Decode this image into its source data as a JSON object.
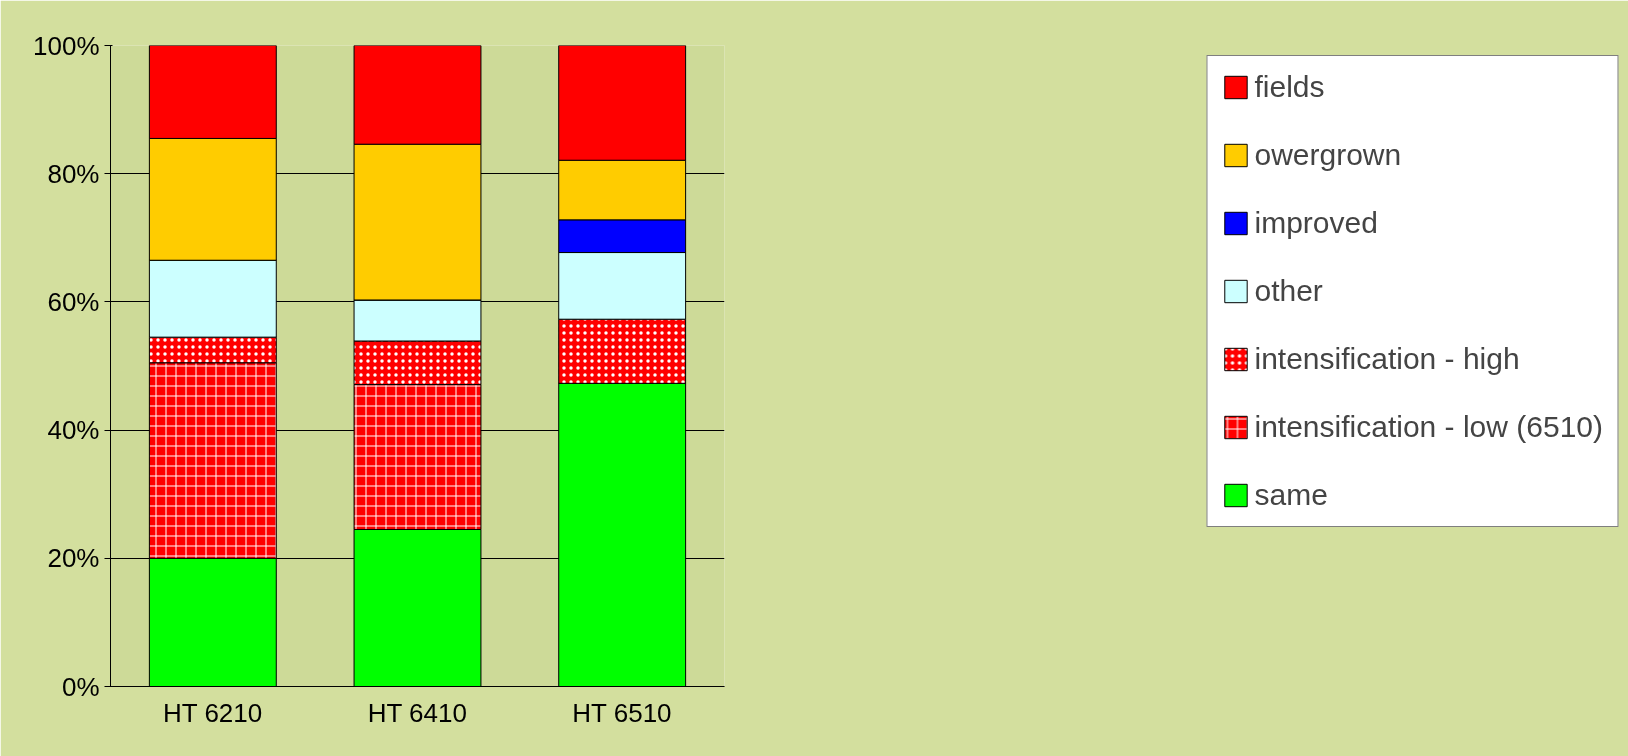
{
  "chart_data": {
    "type": "bar",
    "stacked": true,
    "categories": [
      "HT 6210",
      "HT 6410",
      "HT 6510"
    ],
    "series": [
      {
        "name": "same",
        "color": "#00ff00",
        "values": [
          20,
          24.5,
          47.3
        ]
      },
      {
        "name": "intensification - low (6510)",
        "color": "#ff0000",
        "values": [
          30.5,
          22.6,
          0
        ]
      },
      {
        "name": "intensification - high",
        "color": "#ff0000",
        "values": [
          4,
          6.8,
          10
        ]
      },
      {
        "name": "other",
        "color": "#ccffff",
        "values": [
          12,
          6.4,
          10.4
        ]
      },
      {
        "name": "improved",
        "color": "#0000ff",
        "values": [
          0,
          0,
          5.1
        ]
      },
      {
        "name": "owergrown",
        "color": "#ffcc00",
        "values": [
          19,
          24.3,
          9.3
        ]
      },
      {
        "name": "fields",
        "color": "#ff0000",
        "values": [
          14.5,
          15.4,
          17.9
        ]
      }
    ],
    "ylim": [
      0,
      100
    ],
    "yticks": [
      {
        "value": 0,
        "label": "0%"
      },
      {
        "value": 20,
        "label": "20%"
      },
      {
        "value": 40,
        "label": "40%"
      },
      {
        "value": 60,
        "label": "60%"
      },
      {
        "value": 80,
        "label": "80%"
      },
      {
        "value": 100,
        "label": "100%"
      }
    ],
    "grid": "y",
    "legend": "right"
  }
}
